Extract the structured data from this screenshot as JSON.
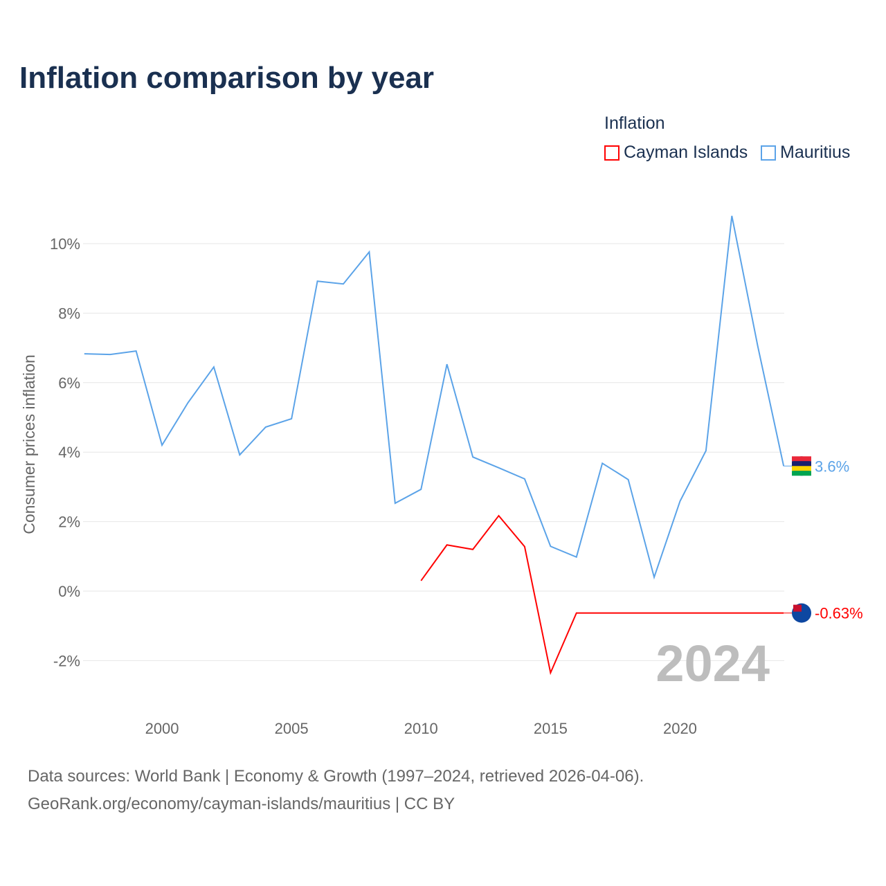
{
  "title": "Inflation comparison by year",
  "source_line1": "Data sources: World Bank | Economy & Growth (1997–2024, retrieved 2026-04-06).",
  "source_line2": "GeoRank.org/economy/cayman-islands/mauritius | CC BY",
  "chart_data": {
    "type": "line",
    "title": "Inflation comparison by year",
    "ylabel": "Consumer prices inflation",
    "xlabel": "",
    "legend_title": "Inflation",
    "legend_position": "top-right",
    "year_watermark": "2024",
    "xlim": [
      1997,
      2024
    ],
    "ylim": [
      -3,
      11.5
    ],
    "xticks": [
      2000,
      2005,
      2010,
      2015,
      2020
    ],
    "yticks": [
      -2,
      0,
      2,
      4,
      6,
      8,
      10
    ],
    "grid": true,
    "series": [
      {
        "name": "Cayman Islands",
        "color": "#ff0000",
        "end_label": "-0.63%",
        "x": [
          2010,
          2011,
          2012,
          2013,
          2014,
          2015,
          2016,
          2017,
          2018,
          2019,
          2020,
          2021,
          2022,
          2023,
          2024
        ],
        "values": [
          0.3,
          1.33,
          1.2,
          2.17,
          1.28,
          -2.35,
          -0.63,
          -0.63,
          -0.63,
          -0.63,
          -0.63,
          -0.63,
          -0.63,
          -0.63,
          -0.63
        ]
      },
      {
        "name": "Mauritius",
        "color": "#5ba3e8",
        "end_label": "3.6%",
        "x": [
          1997,
          1998,
          1999,
          2000,
          2001,
          2002,
          2003,
          2004,
          2005,
          2006,
          2007,
          2008,
          2009,
          2010,
          2011,
          2012,
          2013,
          2014,
          2015,
          2016,
          2017,
          2018,
          2019,
          2020,
          2021,
          2022,
          2023,
          2024
        ],
        "values": [
          6.83,
          6.81,
          6.91,
          4.2,
          5.42,
          6.45,
          3.92,
          4.72,
          4.96,
          8.92,
          8.84,
          9.76,
          2.53,
          2.93,
          6.53,
          3.86,
          3.55,
          3.23,
          1.29,
          0.98,
          3.68,
          3.21,
          0.4,
          2.59,
          4.04,
          10.8,
          7.05,
          3.6
        ]
      }
    ]
  }
}
